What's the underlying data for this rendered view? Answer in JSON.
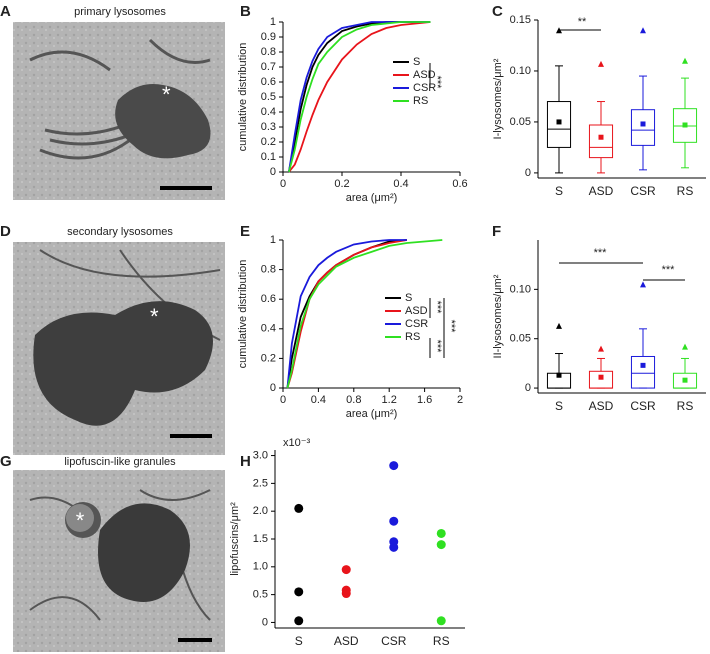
{
  "images": [
    {
      "panel": "A",
      "caption": "primary lysosomes",
      "marker": "*"
    },
    {
      "panel": "D",
      "caption": "secondary lysosomes",
      "marker": "*"
    },
    {
      "panel": "G",
      "caption": "lipofuscin-like granules",
      "marker": "*"
    }
  ],
  "chart_data": [
    {
      "type": "line",
      "panel": "B",
      "xlabel": "area (μm²)",
      "ylabel": "cumulative distribution",
      "x": [
        0.02,
        0.04,
        0.06,
        0.08,
        0.1,
        0.12,
        0.15,
        0.2,
        0.25,
        0.3,
        0.35,
        0.4,
        0.45,
        0.5
      ],
      "series": [
        {
          "name": "S",
          "color": "#000000",
          "values": [
            0,
            0.2,
            0.42,
            0.58,
            0.7,
            0.78,
            0.86,
            0.94,
            0.97,
            0.99,
            1,
            1,
            1,
            1
          ]
        },
        {
          "name": "ASD",
          "color": "#e8141b",
          "values": [
            0,
            0.05,
            0.15,
            0.27,
            0.38,
            0.48,
            0.6,
            0.75,
            0.85,
            0.92,
            0.96,
            0.98,
            0.99,
            1
          ]
        },
        {
          "name": "CSR",
          "color": "#1a1adb",
          "values": [
            0,
            0.25,
            0.48,
            0.63,
            0.74,
            0.82,
            0.9,
            0.96,
            0.98,
            1,
            1,
            1,
            1,
            1
          ]
        },
        {
          "name": "RS",
          "color": "#2fe021",
          "values": [
            0,
            0.15,
            0.35,
            0.5,
            0.62,
            0.72,
            0.8,
            0.9,
            0.95,
            0.98,
            0.99,
            1,
            1,
            1
          ]
        }
      ],
      "xlim": [
        0,
        0.6
      ],
      "xticks": [
        0,
        0.2,
        0.4,
        0.6
      ],
      "ylim": [
        0,
        1
      ],
      "yticks": [
        0,
        0.1,
        0.2,
        0.3,
        0.4,
        0.5,
        0.6,
        0.7,
        0.8,
        0.9,
        1
      ],
      "legend": "right",
      "annotations": [
        "***"
      ]
    },
    {
      "type": "box",
      "panel": "C",
      "ylabel": "I-lysosomes/μm²",
      "categories": [
        "S",
        "ASD",
        "CSR",
        "RS"
      ],
      "colors": [
        "#000000",
        "#e8141b",
        "#1a1adb",
        "#2fe021"
      ],
      "whislo": [
        0,
        0,
        0.003,
        0.005
      ],
      "q1": [
        0.025,
        0.015,
        0.027,
        0.03
      ],
      "med": [
        0.043,
        0.025,
        0.042,
        0.046
      ],
      "q3": [
        0.07,
        0.047,
        0.062,
        0.063
      ],
      "whishi": [
        0.105,
        0.07,
        0.095,
        0.093
      ],
      "mean": [
        0.05,
        0.035,
        0.048,
        0.047
      ],
      "max": [
        0.14,
        0.107,
        0.14,
        0.11
      ],
      "ylim": [
        -0.005,
        0.15
      ],
      "yticks": [
        0,
        0.05,
        {
          "value": 0.1,
          "label": "0.10"
        },
        0.15
      ],
      "annotations": [
        "**"
      ]
    },
    {
      "type": "line",
      "panel": "E",
      "xlabel": "area (μm²)",
      "ylabel": "cumulative distribution",
      "x": [
        0.05,
        0.1,
        0.2,
        0.3,
        0.4,
        0.5,
        0.6,
        0.8,
        1,
        1.2,
        1.4,
        1.6,
        1.8
      ],
      "series": [
        {
          "name": "S",
          "color": "#000000",
          "values": [
            0,
            0.2,
            0.48,
            0.62,
            0.72,
            0.78,
            0.83,
            0.9,
            0.95,
            0.99,
            1,
            null,
            null
          ]
        },
        {
          "name": "ASD",
          "color": "#e8141b",
          "values": [
            0,
            0.1,
            0.38,
            0.6,
            0.72,
            0.78,
            0.83,
            0.9,
            0.95,
            0.98,
            1,
            null,
            null
          ]
        },
        {
          "name": "CSR",
          "color": "#1a1adb",
          "values": [
            0,
            0.3,
            0.62,
            0.75,
            0.83,
            0.88,
            0.92,
            0.97,
            0.99,
            1,
            1,
            null,
            null
          ]
        },
        {
          "name": "RS",
          "color": "#2fe021",
          "values": [
            0,
            0.12,
            0.42,
            0.6,
            0.7,
            0.76,
            0.82,
            0.88,
            0.92,
            0.96,
            0.98,
            0.99,
            1
          ]
        }
      ],
      "xlim": [
        0,
        2
      ],
      "xticks": [
        0,
        0.4,
        0.8,
        1.2,
        1.6,
        2
      ],
      "ylim": [
        0,
        1
      ],
      "yticks": [
        0,
        0.2,
        0.4,
        0.6,
        0.8,
        1
      ],
      "legend": "lower right",
      "annotations": [
        "***",
        "***",
        "***"
      ]
    },
    {
      "type": "box",
      "panel": "F",
      "ylabel": "II-lysosomes/μm²",
      "categories": [
        "S",
        "ASD",
        "CSR",
        "RS"
      ],
      "colors": [
        "#000000",
        "#e8141b",
        "#1a1adb",
        "#2fe021"
      ],
      "whislo": [
        0,
        0,
        0,
        0
      ],
      "q1": [
        0,
        0,
        0,
        0
      ],
      "med": [
        0,
        0,
        0.015,
        0
      ],
      "q3": [
        0.015,
        0.017,
        0.032,
        0.015
      ],
      "whishi": [
        0.035,
        0.03,
        0.06,
        0.03
      ],
      "mean": [
        0.013,
        0.011,
        0.023,
        0.008
      ],
      "max": [
        0.063,
        0.04,
        0.105,
        0.042
      ],
      "ylim": [
        -0.005,
        0.15
      ],
      "yticks": [
        0,
        0.05,
        {
          "value": 0.1,
          "label": "0.10"
        }
      ],
      "annotations": [
        "***",
        "***"
      ]
    },
    {
      "type": "scatter",
      "panel": "H",
      "ylabel": "lipofuscins/μm²",
      "multiplier": "x10⁻³",
      "categories": [
        "S",
        "ASD",
        "CSR",
        "RS"
      ],
      "colors": [
        "#000000",
        "#e8141b",
        "#1a1adb",
        "#2fe021"
      ],
      "values": [
        [
          2.05,
          0.55,
          0.03
        ],
        [
          0.95,
          0.58,
          0.52
        ],
        [
          2.82,
          1.82,
          1.45,
          1.35
        ],
        [
          1.6,
          1.4,
          0.03
        ]
      ],
      "ylim": [
        -0.1,
        3.1
      ],
      "yticks": [
        0,
        0.5,
        {
          "value": 1,
          "label": "1.0"
        },
        1.5,
        {
          "value": 2,
          "label": "2.0"
        },
        2.5,
        {
          "value": 3,
          "label": "3.0"
        }
      ]
    }
  ]
}
